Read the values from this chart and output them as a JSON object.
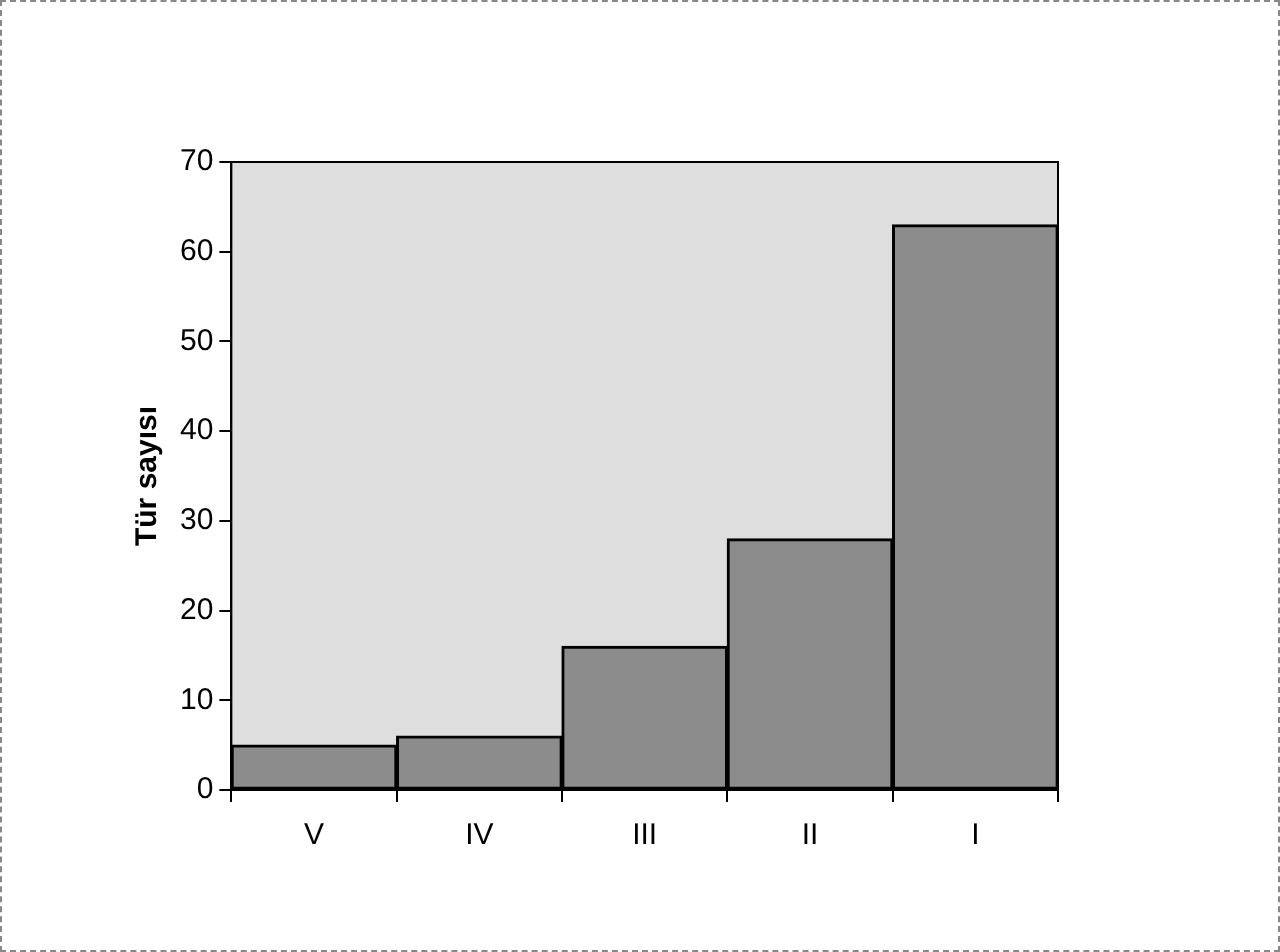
{
  "chart_data": {
    "type": "bar",
    "ylabel": "Tür sayısı",
    "categories": [
      "V",
      "IV",
      "III",
      "II",
      "I"
    ],
    "values": [
      5,
      6,
      16,
      28,
      63
    ],
    "color": "#8c8c8c",
    "ylim": [
      0,
      70
    ],
    "yticks": [
      0,
      10,
      20,
      30,
      40,
      50,
      60,
      70
    ],
    "grid": false,
    "legend": false
  }
}
